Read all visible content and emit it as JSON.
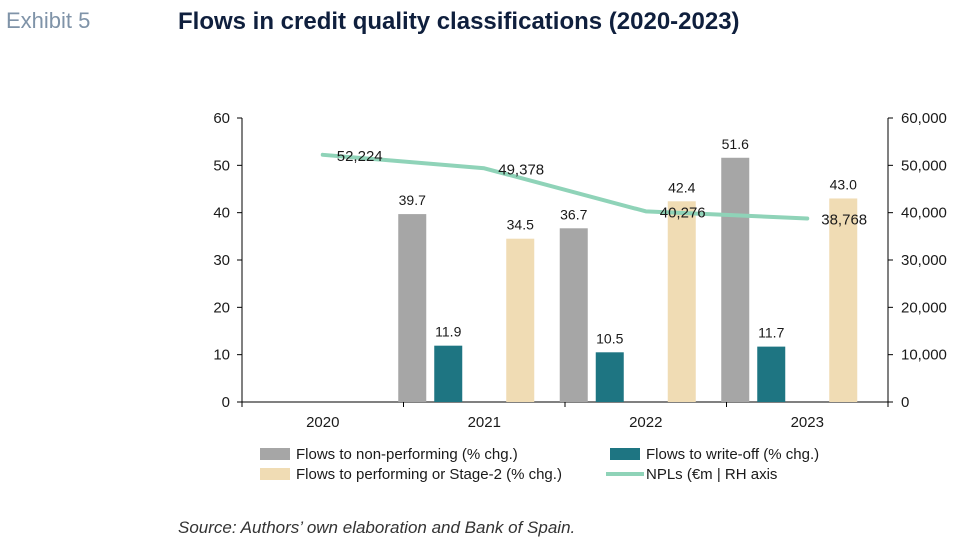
{
  "header": {
    "exhibit": "Exhibit 5",
    "title": "Flows in credit quality classifications (2020-2023)"
  },
  "footer": {
    "source": "Source: Authors’ own elaboration and Bank of Spain."
  },
  "colors": {
    "non_performing": "#a6a6a6",
    "write_off": "#1e7582",
    "performing": "#f0dcb4",
    "npl_line": "#8fd3b8"
  },
  "chart_data": {
    "type": "bar",
    "categories": [
      "2020",
      "2021",
      "2022",
      "2023"
    ],
    "series": [
      {
        "name": "Flows to non-performing (% chg.)",
        "values": [
          null,
          39.7,
          36.7,
          51.6
        ],
        "labels": [
          "",
          "39.7",
          "36.7",
          "51.6"
        ],
        "color": "#a6a6a6"
      },
      {
        "name": "Flows to write-off (% chg.)",
        "values": [
          null,
          11.9,
          10.5,
          11.7
        ],
        "labels": [
          "",
          "11.9",
          "10.5",
          "11.7"
        ],
        "color": "#1e7582"
      },
      {
        "name": "Flows to performing or Stage-2 (% chg.)",
        "values": [
          null,
          34.5,
          42.4,
          43.0
        ],
        "labels": [
          "",
          "34.5",
          "42.4",
          "43.0"
        ],
        "color": "#f0dcb4"
      }
    ],
    "line_series": {
      "name": "NPLs (€m | RH axis",
      "axis": "right",
      "values": [
        52224,
        49378,
        40276,
        38768
      ],
      "labels": [
        "52,224",
        "49,378",
        "40,276",
        "38,768"
      ],
      "color": "#8fd3b8"
    },
    "ylim": [
      0,
      60
    ],
    "y_ticks": [
      "0",
      "10",
      "20",
      "30",
      "40",
      "50",
      "60"
    ],
    "y2lim": [
      0,
      60000
    ],
    "y2_ticks": [
      "0",
      "10,000",
      "20,000",
      "30,000",
      "40,000",
      "50,000",
      "60,000"
    ],
    "grid": false,
    "legend_position": "bottom"
  }
}
